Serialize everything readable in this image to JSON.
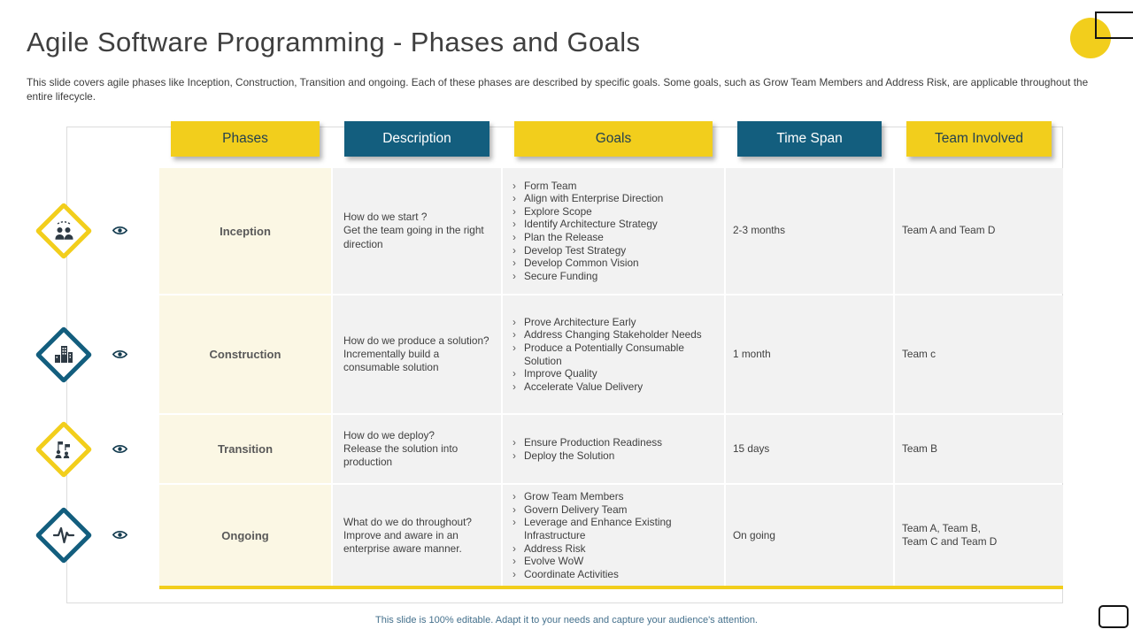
{
  "slide": {
    "title": "Agile Software Programming - Phases and Goals",
    "subtitle": "This slide covers agile phases like Inception, Construction, Transition and ongoing. Each of these phases are described by specific goals.  Some goals, such as Grow Team Members and Address Risk, are applicable throughout the entire lifecycle.",
    "footer": "This slide is 100% editable. Adapt it to your needs and capture your audience's attention."
  },
  "colors": {
    "accent_yellow": "#F2CE1C",
    "accent_blue": "#135E7E",
    "phase_cell_bg": "#FBF7E4",
    "cell_bg": "#F2F2F2",
    "text": "#3F3F3F"
  },
  "table": {
    "headers": [
      {
        "label": "Phases",
        "color": "yellow"
      },
      {
        "label": "Description",
        "color": "blue"
      },
      {
        "label": "Goals",
        "color": "yellow"
      },
      {
        "label": "Time Span",
        "color": "blue"
      },
      {
        "label": "Team Involved",
        "color": "yellow"
      }
    ],
    "rows": [
      {
        "phase": "Inception",
        "accent": "yellow",
        "icon": "team-formation-icon",
        "description": "How do we start ?\nGet the team going in the right direction",
        "goals": [
          "Form Team",
          "Align with Enterprise Direction",
          "Explore Scope",
          "Identify Architecture Strategy",
          "Plan the Release",
          "Develop Test Strategy",
          "Develop Common Vision",
          "Secure Funding"
        ],
        "time_span": "2-3 months",
        "team": "Team A and Team D"
      },
      {
        "phase": "Construction",
        "accent": "blue",
        "icon": "construction-icon",
        "description": "How do we produce a solution?\nIncrementally build a consumable solution",
        "goals": [
          "Prove Architecture Early",
          "Address Changing Stakeholder Needs",
          "Produce a Potentially Consumable Solution",
          "Improve Quality",
          "Accelerate Value Delivery"
        ],
        "time_span": "1 month",
        "team": "Team c"
      },
      {
        "phase": "Transition",
        "accent": "yellow",
        "icon": "transition-icon",
        "description": "How do we deploy?\nRelease the solution into production",
        "goals": [
          "Ensure Production Readiness",
          "Deploy the Solution"
        ],
        "time_span": "15 days",
        "team": "Team B"
      },
      {
        "phase": "Ongoing",
        "accent": "blue",
        "icon": "pulse-icon",
        "description": "What do we do throughout?\nImprove and aware in an enterprise aware manner.",
        "goals": [
          "Grow Team Members",
          "Govern Delivery Team",
          "Leverage and Enhance Existing Infrastructure",
          "Address Risk",
          "Evolve WoW",
          "Coordinate Activities"
        ],
        "time_span": "On going",
        "team": "Team A,  Team B,\nTeam C and Team D"
      }
    ]
  }
}
